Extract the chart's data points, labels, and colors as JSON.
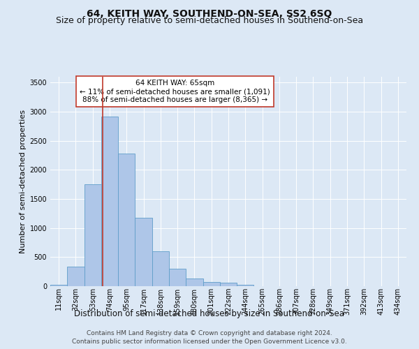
{
  "title": "64, KEITH WAY, SOUTHEND-ON-SEA, SS2 6SQ",
  "subtitle": "Size of property relative to semi-detached houses in Southend-on-Sea",
  "xlabel": "Distribution of semi-detached houses by size in Southend-on-Sea",
  "ylabel": "Number of semi-detached properties",
  "footer_line1": "Contains HM Land Registry data © Crown copyright and database right 2024.",
  "footer_line2": "Contains public sector information licensed under the Open Government Licence v3.0.",
  "annotation_line1": "64 KEITH WAY: 65sqm",
  "annotation_line2": "← 11% of semi-detached houses are smaller (1,091)",
  "annotation_line3": "88% of semi-detached houses are larger (8,365) →",
  "property_sqm": 65,
  "bar_values": [
    30,
    340,
    1750,
    2920,
    2280,
    1175,
    600,
    300,
    130,
    75,
    60,
    25,
    0,
    0,
    0,
    0,
    0,
    0,
    0,
    0,
    0
  ],
  "categories": [
    "11sqm",
    "32sqm",
    "53sqm",
    "74sqm",
    "95sqm",
    "117sqm",
    "138sqm",
    "159sqm",
    "180sqm",
    "201sqm",
    "222sqm",
    "244sqm",
    "265sqm",
    "286sqm",
    "307sqm",
    "328sqm",
    "349sqm",
    "371sqm",
    "392sqm",
    "413sqm",
    "434sqm"
  ],
  "bin_edges": [
    0,
    21,
    42,
    63,
    84,
    105,
    126,
    147,
    168,
    189,
    210,
    231,
    252,
    273,
    294,
    315,
    336,
    357,
    378,
    399,
    420,
    441
  ],
  "bar_color": "#aec6e8",
  "bar_edge_color": "#5f9dc9",
  "vline_x": 65,
  "vline_color": "#c0392b",
  "ylim": [
    0,
    3600
  ],
  "yticks": [
    0,
    500,
    1000,
    1500,
    2000,
    2500,
    3000,
    3500
  ],
  "background_color": "#dce8f5",
  "grid_color": "#ffffff",
  "annotation_box_facecolor": "#ffffff",
  "annotation_box_edge_color": "#c0392b",
  "title_fontsize": 10,
  "subtitle_fontsize": 9,
  "xlabel_fontsize": 8.5,
  "ylabel_fontsize": 8,
  "tick_fontsize": 7,
  "annotation_fontsize": 7.5,
  "footer_fontsize": 6.5
}
